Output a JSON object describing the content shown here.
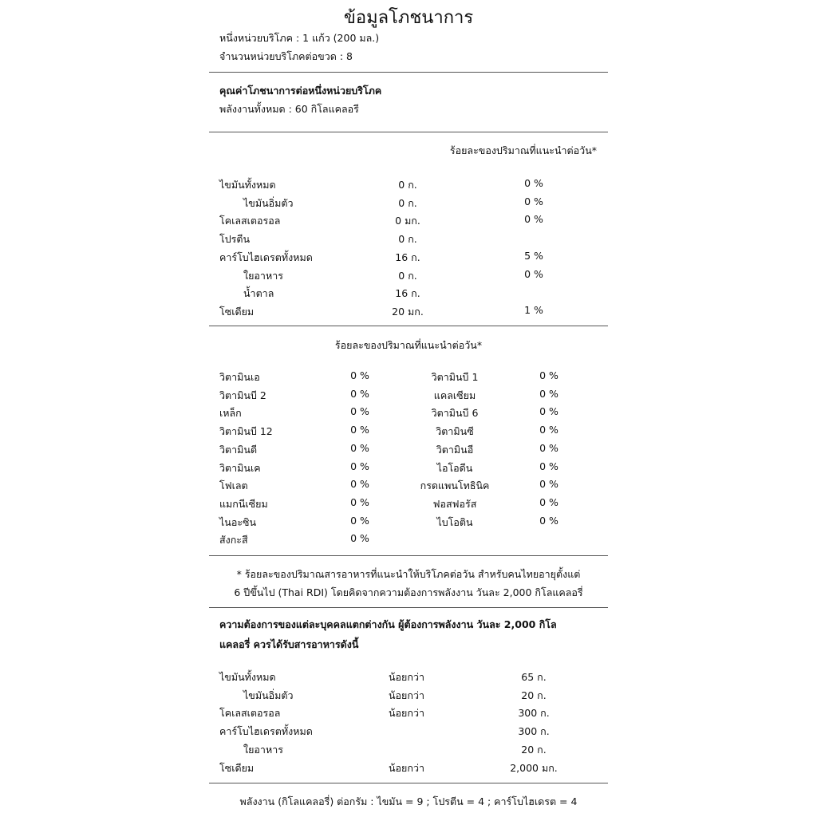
{
  "title": "ข้อมูลโภชนาการ",
  "serving_size": "หนึ่งหน่วยบริโภค : 1 แก้ว (200 มล.)",
  "servings_per_container": "จำนวนหน่วยบริโภคต่อขวด : 8",
  "per_serving_heading": "คุณค่าโภชนาการต่อหนึ่งหน่วยบริโภค",
  "total_energy": "พลังงานทั้งหมด : 60 กิโลแคลอรี",
  "rdi_header": "ร้อยละของปริมาณที่แนะนำต่อวัน*",
  "nutrients": [
    {
      "name": "ไขมันทั้งหมด",
      "amount": "0 ก.",
      "percent": "0 %",
      "indent": false
    },
    {
      "name": "ไขมันอิ่มตัว",
      "amount": "0 ก.",
      "percent": "0 %",
      "indent": true
    },
    {
      "name": "โคเลสเตอรอล",
      "amount": "0 มก.",
      "percent": "0 %",
      "indent": false
    },
    {
      "name": "โปรตีน",
      "amount": "0 ก.",
      "percent": "",
      "indent": false
    },
    {
      "name": "คาร์โบไฮเดรตทั้งหมด",
      "amount": "16 ก.",
      "percent": "5 %",
      "indent": false
    },
    {
      "name": "ใยอาหาร",
      "amount": "0 ก.",
      "percent": "0 %",
      "indent": true
    },
    {
      "name": "น้ำตาล",
      "amount": "16 ก.",
      "percent": "",
      "indent": true
    },
    {
      "name": "โซเดียม",
      "amount": "20 มก.",
      "percent": "1 %",
      "indent": false
    }
  ],
  "vitamins_header": "ร้อยละของปริมาณที่แนะนำต่อวัน*",
  "vitamins": [
    {
      "left": "วิตามินเอ",
      "left_pct": "0 %",
      "right": "วิตามินบี 1",
      "right_pct": "0 %"
    },
    {
      "left": "วิตามินบี 2",
      "left_pct": "0 %",
      "right": "แคลเซียม",
      "right_pct": "0 %"
    },
    {
      "left": "เหล็ก",
      "left_pct": "0 %",
      "right": "วิตามินบี 6",
      "right_pct": "0 %"
    },
    {
      "left": "วิตามินบี 12",
      "left_pct": "0 %",
      "right": "วิตามินซี",
      "right_pct": "0 %"
    },
    {
      "left": "วิตามินดี",
      "left_pct": "0 %",
      "right": "วิตามินอี",
      "right_pct": "0 %"
    },
    {
      "left": "วิตามินเค",
      "left_pct": "0 %",
      "right": "ไอโอดีน",
      "right_pct": "0 %"
    },
    {
      "left": "โฟเลต",
      "left_pct": "0 %",
      "right": "กรดแพนโทธินิค",
      "right_pct": "0 %"
    },
    {
      "left": "แมกนีเซียม",
      "left_pct": "0 %",
      "right": "ฟอสฟอรัส",
      "right_pct": "0 %"
    },
    {
      "left": "ไนอะซิน",
      "left_pct": "0 %",
      "right": "ไบโอติน",
      "right_pct": "0 %"
    },
    {
      "left": "สังกะสี",
      "left_pct": "0 %",
      "right": "",
      "right_pct": ""
    }
  ],
  "footnote_line1": "* ร้อยละของปริมาณสารอาหารที่แนะนำให้บริโภคต่อวัน สำหรับคนไทยอายุตั้งแต่",
  "footnote_line2": "6 ปีขึ้นไป (Thai RDI) โดยคิดจากความต้องการพลังงาน วันละ 2,000 กิโลแคลอรี่",
  "needs_line1": "ความต้องการของแต่ละบุคคลแตกต่างกัน ผู้ต้องการพลังงาน วันละ 2,000 กิโล",
  "needs_line2": "แคลอรี่ ควรได้รับสารอาหารดังนี้",
  "daily_needs": [
    {
      "name": "ไขมันทั้งหมด",
      "qualifier": "น้อยกว่า",
      "amount": "65 ก.",
      "indent": false
    },
    {
      "name": "ไขมันอิ่มตัว",
      "qualifier": "น้อยกว่า",
      "amount": "20 ก.",
      "indent": true
    },
    {
      "name": "โคเลสเตอรอล",
      "qualifier": "น้อยกว่า",
      "amount": "300 ก.",
      "indent": false
    },
    {
      "name": "คาร์โบไฮเดรตทั้งหมด",
      "qualifier": "",
      "amount": "300 ก.",
      "indent": false
    },
    {
      "name": "ใยอาหาร",
      "qualifier": "",
      "amount": "20 ก.",
      "indent": true
    },
    {
      "name": "โซเดียม",
      "qualifier": "น้อยกว่า",
      "amount": "2,000 มก.",
      "indent": false
    }
  ],
  "energy_footer": "พลังงาน (กิโลแคลอรี่) ต่อกรัม : ไขมัน = 9 ; โปรตีน = 4 ; คาร์โบไฮเดรต = 4"
}
